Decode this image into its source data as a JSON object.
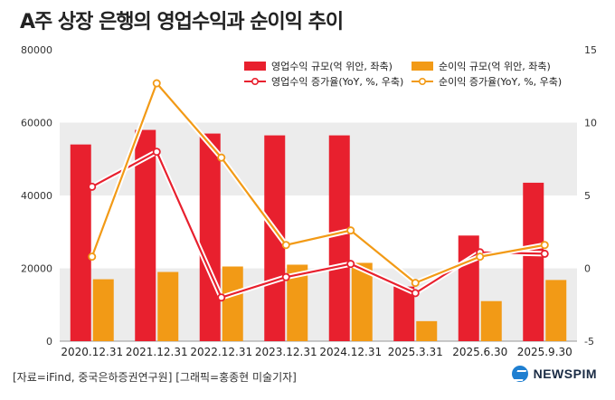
{
  "title": "A주 상장 은행의 영업수익과 순이익 추이",
  "source": "[자료=iFind, 중국은하증권연구원] [그래픽=홍종현 미술기자]",
  "brand": "NEWSPIM",
  "chart_data": {
    "type": "bar",
    "categories": [
      "2020.12.31",
      "2021.12.31",
      "2022.12.31",
      "2023.12.31",
      "2024.12.31",
      "2025.3.31",
      "2025.6.30",
      "2025.9.30"
    ],
    "series": [
      {
        "name": "영업수익 규모(억 위안, 좌축)",
        "kind": "bar",
        "axis": "left",
        "color": "#e8202e",
        "values": [
          54000,
          58000,
          57000,
          56500,
          56500,
          15000,
          29000,
          43500
        ]
      },
      {
        "name": "순이익 규모(억 위안, 좌축)",
        "kind": "bar",
        "axis": "left",
        "color": "#f29a16",
        "values": [
          17000,
          19000,
          20500,
          21000,
          21500,
          5500,
          11000,
          16800
        ]
      },
      {
        "name": "영업수익 증가율(YoY, %, 우축)",
        "kind": "line",
        "axis": "right",
        "color": "#e8202e",
        "values": [
          5.6,
          8.0,
          -2.0,
          -0.6,
          0.3,
          -1.7,
          1.1,
          1.0
        ]
      },
      {
        "name": "순이익 증가율(YoY, %, 우축)",
        "kind": "line",
        "axis": "right",
        "color": "#f29a16",
        "values": [
          0.8,
          12.7,
          7.6,
          1.6,
          2.6,
          -1.0,
          0.8,
          1.6
        ]
      }
    ],
    "y_left": {
      "min": 0,
      "max": 80000,
      "ticks": [
        0,
        20000,
        40000,
        60000,
        80000
      ]
    },
    "y_right": {
      "min": -5,
      "max": 15,
      "ticks": [
        -5,
        0,
        5,
        10,
        15
      ]
    },
    "legend_position": "top-right"
  }
}
